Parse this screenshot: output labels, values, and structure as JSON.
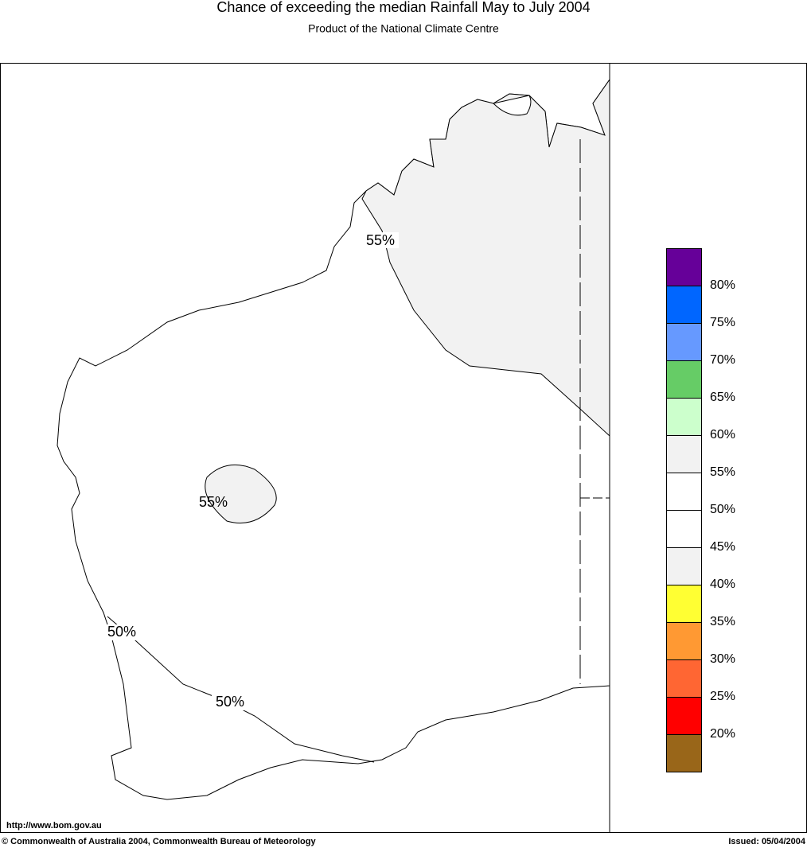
{
  "header": {
    "title": "Chance of exceeding the median Rainfall May to July 2004",
    "subtitle": "Product of the National Climate Centre"
  },
  "map": {
    "contour_labels": [
      "55%",
      "55%",
      "50%",
      "50%"
    ]
  },
  "legend": {
    "colors": [
      "#660099",
      "#0066ff",
      "#6699ff",
      "#66cc66",
      "#ccffcc",
      "#f2f2f2",
      "#ffffff",
      "#ffffff",
      "#f2f2f2",
      "#ffff33",
      "#ff9933",
      "#ff6633",
      "#ff0000",
      "#996619"
    ],
    "labels": [
      "80%",
      "75%",
      "70%",
      "65%",
      "60%",
      "55%",
      "50%",
      "45%",
      "40%",
      "35%",
      "30%",
      "25%",
      "20%"
    ]
  },
  "footer": {
    "url": "http://www.bom.gov.au",
    "copyright": "© Commonwealth of Australia 2004, Commonwealth Bureau of Meteorology",
    "issued": "Issued: 05/04/2004"
  }
}
